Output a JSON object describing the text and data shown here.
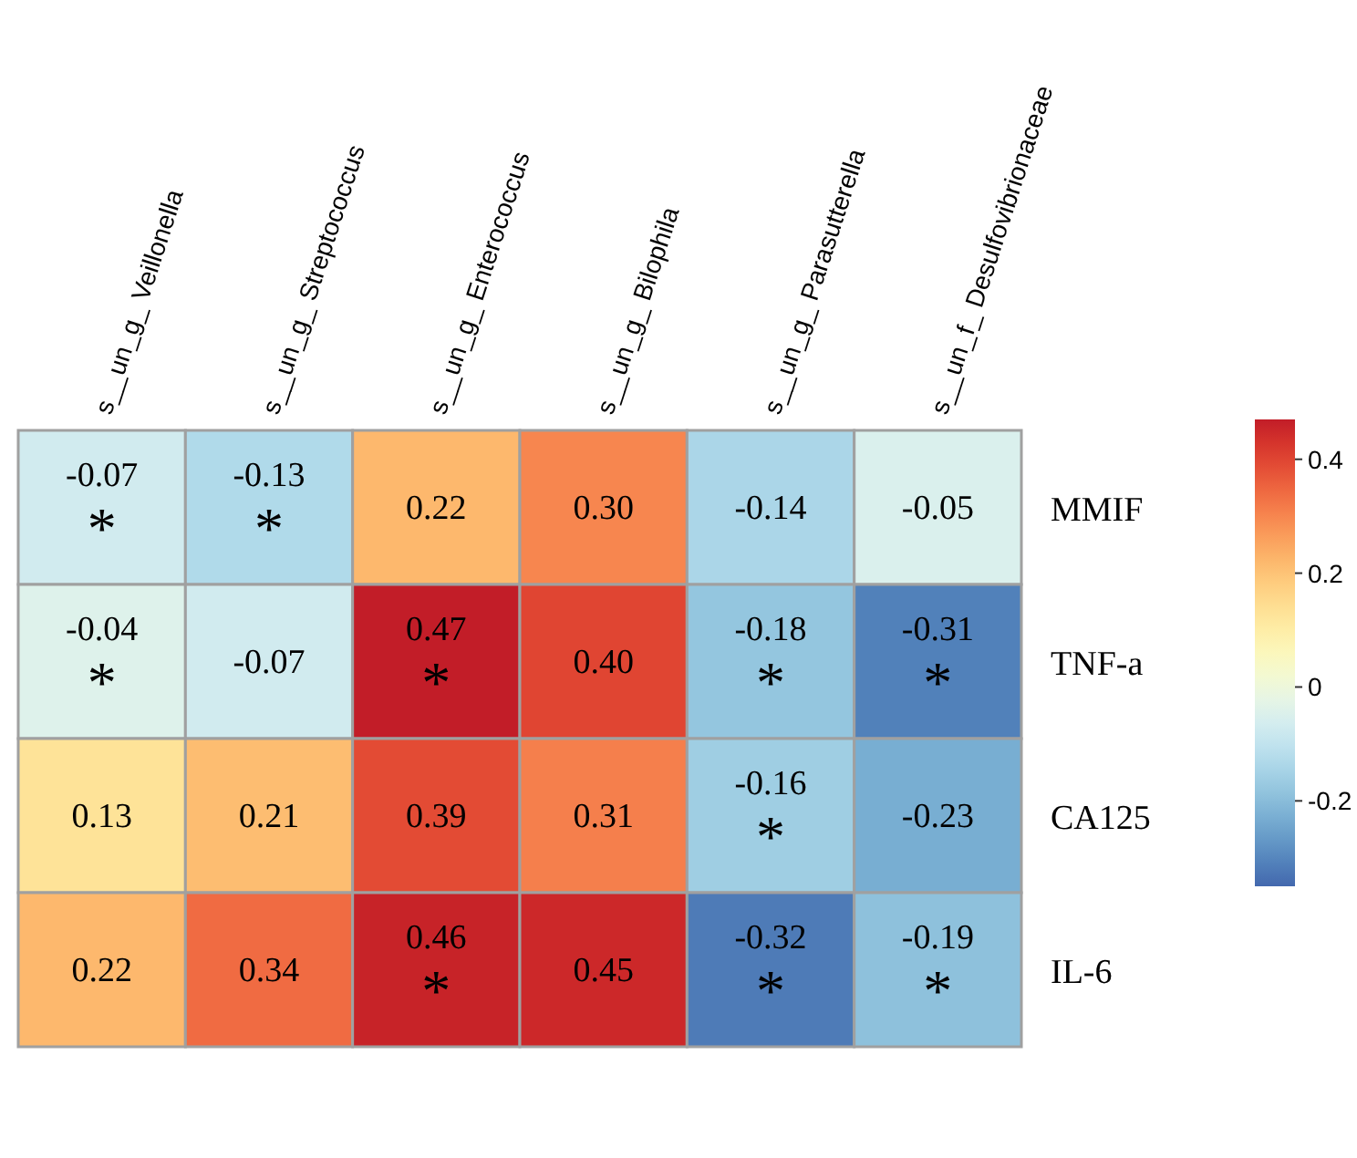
{
  "chart_data": {
    "type": "heatmap",
    "categories": [
      "s__un_g_ Veillonella",
      "s__un_g_ Streptococcus",
      "s__un_g_ Enterococcus",
      "s__un_g_ Bilophila",
      "s__un_g_ Parasutterella",
      "s__un_f_ Desulfovibrionaceae"
    ],
    "y_categories": [
      "MMIF",
      "TNF-a",
      "CA125",
      "IL-6"
    ],
    "cells": [
      [
        -0.07,
        -0.13,
        0.22,
        0.3,
        -0.14,
        -0.05
      ],
      [
        -0.04,
        -0.07,
        0.47,
        0.4,
        -0.18,
        -0.31
      ],
      [
        0.13,
        0.21,
        0.39,
        0.31,
        -0.16,
        -0.23
      ],
      [
        0.22,
        0.34,
        0.46,
        0.45,
        -0.32,
        -0.19
      ]
    ],
    "cell_labels": [
      [
        "-0.07\n*",
        "-0.13\n*",
        "0.22",
        "0.30",
        "-0.14",
        "-0.05"
      ],
      [
        "-0.04\n*",
        "-0.07",
        "0.47\n*",
        "0.40",
        "-0.18\n*",
        "-0.31\n*"
      ],
      [
        "0.13",
        "0.21",
        "0.39",
        "0.31",
        "-0.16\n*",
        "-0.23"
      ],
      [
        "0.22",
        "0.34",
        "0.46\n*",
        "0.45",
        "-0.32\n*",
        "-0.19\n*"
      ]
    ],
    "clim": [
      -0.35,
      0.47
    ],
    "cticks": [
      -0.2,
      0,
      0.2,
      0.4
    ]
  }
}
